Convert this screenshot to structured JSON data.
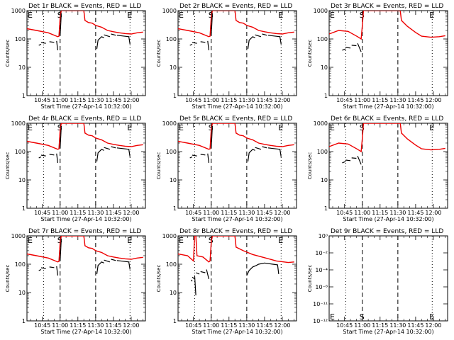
{
  "chart_data": {
    "type": "line",
    "layout": "3x3 grid",
    "xlabel": "Start Time (27-Apr-14 10:32:00)",
    "xlim": [
      "10:32",
      "12:12"
    ],
    "x_ticks": [
      "10:45",
      "11:00",
      "11:15",
      "11:30",
      "11:45",
      "12:00"
    ],
    "ylabel": "Counts/sec",
    "ylim": [
      1,
      1000
    ],
    "y_scale": "log",
    "y_ticks": [
      "1",
      "10",
      "100",
      "1000"
    ],
    "colors": {
      "events": "#000000",
      "lld": "#ee0000"
    },
    "markers": {
      "E_left": "E",
      "S": "S",
      "E_right": "E"
    },
    "panels": [
      {
        "title": "Det 1r BLACK = Events, RED = LLD",
        "style": "a"
      },
      {
        "title": "Det 2r BLACK = Events, RED = LLD",
        "style": "a"
      },
      {
        "title": "Det 3r BLACK = Events, RED = LLD",
        "style": "b"
      },
      {
        "title": "Det 4r BLACK = Events, RED = LLD",
        "style": "a"
      },
      {
        "title": "Det 5r BLACK = Events, RED = LLD",
        "style": "a"
      },
      {
        "title": "Det 6r BLACK = Events, RED = LLD",
        "style": "b"
      },
      {
        "title": "Det 7r BLACK = Events, RED = LLD",
        "style": "a"
      },
      {
        "title": "Det 8r BLACK = Events, RED = LLD",
        "style": "c"
      },
      {
        "title": "Det 9r BLACK = Events, RED = LLD",
        "style": "empty",
        "y_ticks": [
          "10⁻¹²",
          "10⁻¹¹",
          "10⁻⁶",
          "10⁻⁴",
          "10⁻²",
          "10⁰"
        ]
      }
    ],
    "series_profiles": {
      "a": {
        "lld": [
          [
            "10:32",
            230
          ],
          [
            "10:40",
            200
          ],
          [
            "10:50",
            165
          ],
          [
            "10:58",
            120
          ],
          [
            "10:59",
            125
          ],
          [
            "11:00",
            600
          ],
          [
            "11:01",
            1000
          ],
          [
            "11:20",
            1000
          ],
          [
            "11:21",
            450
          ],
          [
            "11:24",
            380
          ],
          [
            "11:27",
            360
          ],
          [
            "11:30",
            300
          ],
          [
            "11:35",
            260
          ],
          [
            "11:40",
            200
          ],
          [
            "11:45",
            180
          ],
          [
            "11:50",
            165
          ],
          [
            "11:55",
            155
          ],
          [
            "12:00",
            150
          ],
          [
            "12:05",
            165
          ],
          [
            "12:10",
            175
          ]
        ],
        "events": [
          [
            [
              "10:42",
              60
            ],
            [
              "10:44",
              65
            ]
          ],
          [
            [
              "10:44",
              75
            ],
            [
              "10:48",
              70
            ]
          ],
          [
            [
              "10:51",
              80
            ],
            [
              "10:55",
              76
            ]
          ],
          [
            [
              "10:57",
              85
            ],
            [
              "10:58",
              40
            ]
          ],
          [
            [
              "11:00",
              130
            ],
            [
              "11:01",
              800
            ]
          ],
          [
            [
              "11:31",
              45
            ],
            [
              "11:32",
              90
            ],
            [
              "11:35",
              120
            ],
            [
              "11:37",
              110
            ]
          ],
          [
            [
              "11:37",
              140
            ],
            [
              "11:42",
              120
            ]
          ],
          [
            [
              "11:43",
              150
            ],
            [
              "11:47",
              135
            ]
          ],
          [
            [
              "11:48",
              135
            ],
            [
              "11:58",
              120
            ],
            [
              "11:59",
              65
            ]
          ]
        ]
      },
      "b": {
        "lld": [
          [
            "10:32",
            150
          ],
          [
            "10:40",
            200
          ],
          [
            "10:48",
            185
          ],
          [
            "10:56",
            120
          ],
          [
            "10:59",
            100
          ],
          [
            "11:00",
            300
          ],
          [
            "11:01",
            1000
          ],
          [
            "11:32",
            1000
          ],
          [
            "11:33",
            450
          ],
          [
            "11:38",
            280
          ],
          [
            "11:45",
            170
          ],
          [
            "11:50",
            125
          ],
          [
            "11:58",
            115
          ],
          [
            "12:05",
            120
          ],
          [
            "12:10",
            130
          ]
        ],
        "events": [
          [
            [
              "10:43",
              40
            ],
            [
              "10:46",
              45
            ]
          ],
          [
            [
              "10:46",
              50
            ],
            [
              "10:50",
              48
            ]
          ],
          [
            [
              "10:51",
              60
            ],
            [
              "10:55",
              58
            ]
          ],
          [
            [
              "10:56",
              70
            ],
            [
              "10:59",
              35
            ]
          ]
        ]
      },
      "c": {
        "lld": [
          [
            "10:32",
            230
          ],
          [
            "10:40",
            200
          ],
          [
            "10:45",
            130
          ],
          [
            "10:46",
            1000
          ],
          [
            "10:47",
            1000
          ],
          [
            "10:48",
            200
          ],
          [
            "10:53",
            180
          ],
          [
            "10:58",
            120
          ],
          [
            "10:59",
            130
          ],
          [
            "11:00",
            600
          ],
          [
            "11:01",
            1000
          ],
          [
            "11:20",
            1000
          ],
          [
            "11:21",
            400
          ],
          [
            "11:27",
            300
          ],
          [
            "11:35",
            220
          ],
          [
            "11:45",
            170
          ],
          [
            "11:55",
            130
          ],
          [
            "12:05",
            115
          ],
          [
            "12:10",
            120
          ]
        ],
        "events": [
          [
            [
              "10:43",
              28
            ],
            [
              "10:44",
              25
            ]
          ],
          [
            [
              "10:44",
              35
            ],
            [
              "10:46",
              30
            ]
          ],
          [
            [
              "10:46",
              40
            ],
            [
              "10:47",
              8
            ]
          ],
          [
            [
              "10:47",
              50
            ],
            [
              "10:50",
              45
            ]
          ],
          [
            [
              "10:51",
              55
            ],
            [
              "10:55",
              50
            ]
          ],
          [
            [
              "10:56",
              65
            ],
            [
              "10:58",
              30
            ]
          ],
          [
            [
              "11:30",
              40
            ],
            [
              "11:32",
              60
            ],
            [
              "11:35",
              80
            ],
            [
              "11:38",
              90
            ],
            [
              "11:40",
              100
            ],
            [
              "11:45",
              110
            ],
            [
              "11:52",
              100
            ],
            [
              "11:56",
              95
            ],
            [
              "11:57",
              45
            ]
          ]
        ]
      }
    }
  }
}
